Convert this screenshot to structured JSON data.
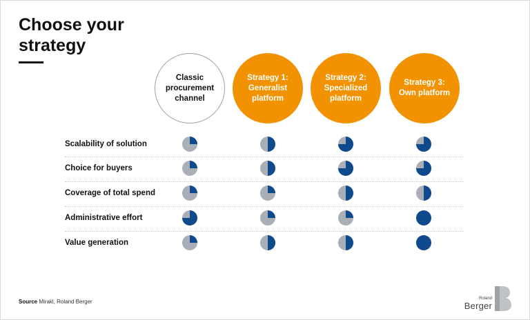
{
  "title": "Choose your strategy",
  "columns": [
    {
      "label": "Classic procurement channel",
      "style": "outline"
    },
    {
      "label": "Strategy 1: Generalist platform",
      "style": "filled"
    },
    {
      "label": "Strategy 2: Specialized platform",
      "style": "filled"
    },
    {
      "label": "Strategy 3: Own platform",
      "style": "filled"
    }
  ],
  "rows": [
    {
      "label": "Scalability of solution",
      "levels": [
        0.25,
        0.5,
        0.75,
        0.75
      ]
    },
    {
      "label": "Choice for buyers",
      "levels": [
        0.25,
        0.5,
        0.75,
        0.75
      ]
    },
    {
      "label": "Coverage of total spend",
      "levels": [
        0.25,
        0.25,
        0.5,
        0.5
      ]
    },
    {
      "label": "Administrative effort",
      "levels": [
        0.75,
        0.25,
        0.25,
        1.0
      ]
    },
    {
      "label": "Value generation",
      "levels": [
        0.25,
        0.5,
        0.5,
        1.0
      ]
    }
  ],
  "colors": {
    "accent": "#f39200",
    "filled": "#0f4b8c",
    "empty": "#a9afb6"
  },
  "source": {
    "label": "Source",
    "text": "Mirakl, Roland Berger"
  },
  "logo": {
    "small": "Roland",
    "big": "Berger"
  }
}
